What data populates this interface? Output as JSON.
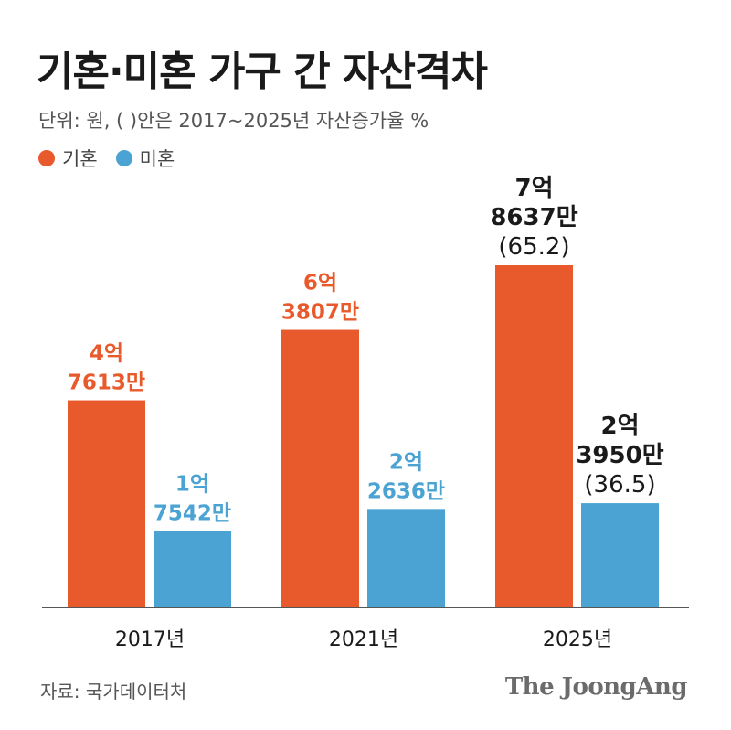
{
  "title": "기혼·미혼 가구 간 자산격차",
  "subtitle": "단위: 원, ( )안은 2017~2025년 자산증가율 %",
  "source": "자료: 국가데이터처",
  "brand": "The JoongAng",
  "colors": {
    "married": "#e85a2c",
    "unmarried": "#4aa3d2",
    "dark_label": "#1a1a1a",
    "axis": "#555555"
  },
  "chart_data": {
    "type": "bar",
    "title": "기혼·미혼 가구 간 자산격차",
    "subtitle": "단위: 원, ( )안은 2017~2025년 자산증가율 %",
    "categories": [
      "2017년",
      "2021년",
      "2025년"
    ],
    "ylim": [
      0,
      80000
    ],
    "unit": "만원",
    "legend_position": "top-left",
    "grid": false,
    "series": [
      {
        "name": "기혼",
        "color": "#e85a2c",
        "values": [
          47613,
          63807,
          78637
        ],
        "labels": [
          [
            "4억",
            "7613만"
          ],
          [
            "6억",
            "3807만"
          ],
          [
            "7억",
            "8637만",
            "(65.2)"
          ]
        ]
      },
      {
        "name": "미혼",
        "color": "#4aa3d2",
        "values": [
          17542,
          22636,
          23950
        ],
        "labels": [
          [
            "1억",
            "7542만"
          ],
          [
            "2억",
            "2636만"
          ],
          [
            "2억",
            "3950만",
            "(36.5)"
          ]
        ]
      }
    ]
  }
}
